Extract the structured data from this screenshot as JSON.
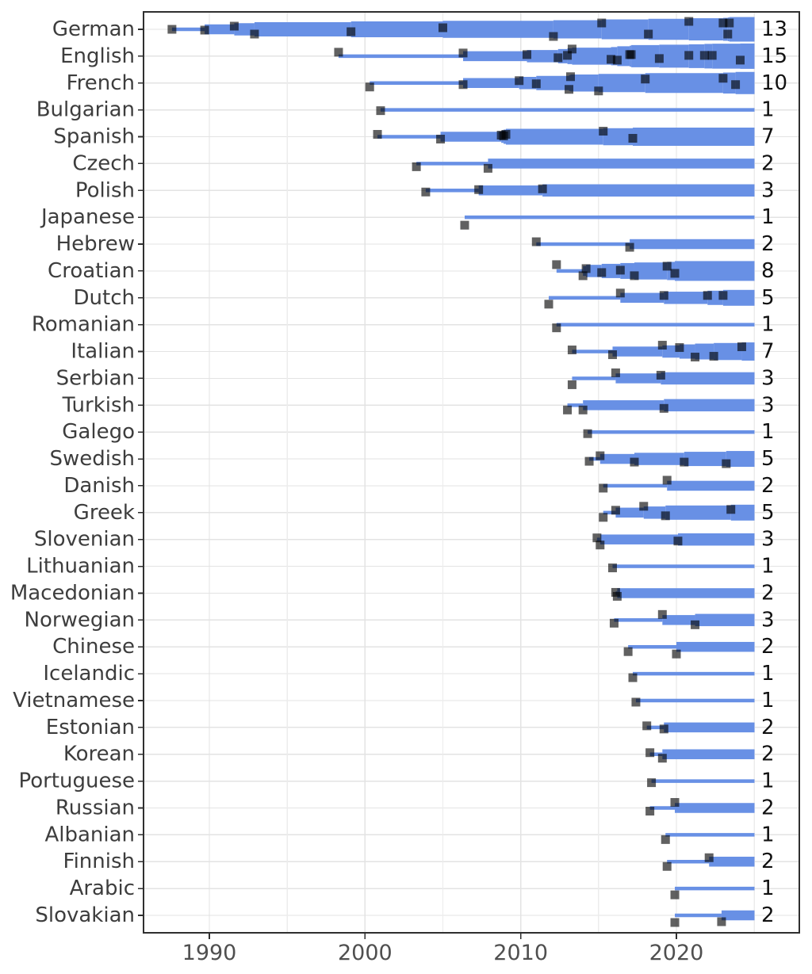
{
  "chart_data": {
    "type": "scatter",
    "subtype": "timeline-dotplot-with-cumulative-ribbons",
    "title": "",
    "xlabel": "",
    "ylabel": "",
    "x_axis": {
      "tick_labels": [
        "1990",
        "2000",
        "2010",
        "2020"
      ],
      "tick_years": [
        1990,
        2000,
        2010,
        2020
      ],
      "minor_grid_years": [
        1995,
        2005,
        2015,
        2025
      ],
      "range_years": [
        1985.8,
        2027.9
      ],
      "ribbon_end_year": 2025.0,
      "grid": true
    },
    "colors": {
      "ribbon": "#6890e5",
      "marker": "rgba(0,0,0,0.62)",
      "grid_line": "#e3e3e3",
      "minor_grid_line": "#ececec",
      "plot_border": "#2f2f2f",
      "axis_text": "#3d3d3d",
      "x_tick_text": "#4f4f4f",
      "count_text": "#111111"
    },
    "events_format": "[year, vertical_jitter_px]",
    "rows": [
      {
        "language": "German",
        "count": 13,
        "events": [
          [
            1987.6,
            0
          ],
          [
            1989.7,
            1
          ],
          [
            1991.6,
            -4
          ],
          [
            1992.9,
            6
          ],
          [
            1999.1,
            3
          ],
          [
            2005.0,
            -2
          ],
          [
            2012.1,
            9
          ],
          [
            2015.2,
            -8
          ],
          [
            2018.2,
            6
          ],
          [
            2020.8,
            -10
          ],
          [
            2023.0,
            -8
          ],
          [
            2023.3,
            6
          ],
          [
            2023.4,
            -8
          ]
        ]
      },
      {
        "language": "English",
        "count": 15,
        "events": [
          [
            1998.3,
            -5
          ],
          [
            2006.3,
            -4
          ],
          [
            2010.4,
            -2
          ],
          [
            2012.4,
            2
          ],
          [
            2013.0,
            -1
          ],
          [
            2013.3,
            -9
          ],
          [
            2015.8,
            4
          ],
          [
            2016.2,
            5
          ],
          [
            2017.0,
            -2
          ],
          [
            2017.1,
            -2
          ],
          [
            2018.9,
            3
          ],
          [
            2020.8,
            -1
          ],
          [
            2021.8,
            -1
          ],
          [
            2022.3,
            -1
          ],
          [
            2024.1,
            5
          ]
        ]
      },
      {
        "language": "French",
        "count": 10,
        "events": [
          [
            2000.3,
            5
          ],
          [
            2006.3,
            2
          ],
          [
            2009.9,
            -3
          ],
          [
            2011.0,
            1
          ],
          [
            2013.1,
            8
          ],
          [
            2013.2,
            -8
          ],
          [
            2015.0,
            10
          ],
          [
            2018.0,
            -5
          ],
          [
            2023.0,
            -6
          ],
          [
            2023.8,
            2
          ]
        ]
      },
      {
        "language": "Bulgarian",
        "count": 1,
        "events": [
          [
            2001.0,
            1
          ]
        ]
      },
      {
        "language": "Spanish",
        "count": 7,
        "events": [
          [
            2000.8,
            -3
          ],
          [
            2004.85,
            3
          ],
          [
            2008.75,
            -2
          ],
          [
            2008.9,
            -1
          ],
          [
            2009.05,
            -3
          ],
          [
            2015.3,
            -7
          ],
          [
            2017.2,
            2
          ]
        ]
      },
      {
        "language": "Czech",
        "count": 2,
        "events": [
          [
            2003.3,
            4
          ],
          [
            2007.9,
            6
          ]
        ]
      },
      {
        "language": "Polish",
        "count": 3,
        "events": [
          [
            2003.9,
            2
          ],
          [
            2007.3,
            -1
          ],
          [
            2011.4,
            -2
          ]
        ]
      },
      {
        "language": "Japanese",
        "count": 1,
        "events": [
          [
            2006.4,
            10
          ]
        ]
      },
      {
        "language": "Hebrew",
        "count": 2,
        "events": [
          [
            2011.0,
            -3
          ],
          [
            2017.0,
            4
          ]
        ]
      },
      {
        "language": "Croatian",
        "count": 8,
        "events": [
          [
            2012.3,
            -8
          ],
          [
            2014.0,
            6
          ],
          [
            2014.2,
            -3
          ],
          [
            2015.2,
            2
          ],
          [
            2016.4,
            -1
          ],
          [
            2017.3,
            6
          ],
          [
            2019.4,
            -6
          ],
          [
            2019.9,
            3
          ]
        ]
      },
      {
        "language": "Dutch",
        "count": 5,
        "events": [
          [
            2011.8,
            8
          ],
          [
            2016.4,
            -6
          ],
          [
            2019.2,
            -3
          ],
          [
            2022.0,
            -3
          ],
          [
            2023.0,
            -3
          ]
        ]
      },
      {
        "language": "Romanian",
        "count": 1,
        "events": [
          [
            2012.3,
            4
          ]
        ]
      },
      {
        "language": "Italian",
        "count": 7,
        "events": [
          [
            2013.3,
            -2
          ],
          [
            2015.9,
            4
          ],
          [
            2019.1,
            -8
          ],
          [
            2020.2,
            -5
          ],
          [
            2021.2,
            7
          ],
          [
            2022.4,
            6
          ],
          [
            2024.2,
            -6
          ]
        ]
      },
      {
        "language": "Serbian",
        "count": 3,
        "events": [
          [
            2013.3,
            8
          ],
          [
            2016.1,
            -7
          ],
          [
            2019.0,
            -4
          ]
        ]
      },
      {
        "language": "Turkish",
        "count": 3,
        "events": [
          [
            2013.0,
            6
          ],
          [
            2014.0,
            6
          ],
          [
            2019.2,
            4
          ]
        ]
      },
      {
        "language": "Galego",
        "count": 1,
        "events": [
          [
            2014.3,
            2
          ]
        ]
      },
      {
        "language": "Swedish",
        "count": 5,
        "events": [
          [
            2014.4,
            3
          ],
          [
            2015.1,
            -4
          ],
          [
            2017.3,
            4
          ],
          [
            2020.5,
            4
          ],
          [
            2023.2,
            6
          ]
        ]
      },
      {
        "language": "Danish",
        "count": 2,
        "events": [
          [
            2015.3,
            3
          ],
          [
            2019.4,
            -7
          ]
        ]
      },
      {
        "language": "Greek",
        "count": 5,
        "events": [
          [
            2015.3,
            6
          ],
          [
            2016.1,
            -3
          ],
          [
            2017.9,
            -8
          ],
          [
            2019.3,
            4
          ],
          [
            2023.5,
            -4
          ]
        ]
      },
      {
        "language": "Slovenian",
        "count": 3,
        "events": [
          [
            2014.9,
            -2
          ],
          [
            2015.1,
            7
          ],
          [
            2020.1,
            2
          ]
        ]
      },
      {
        "language": "Lithuanian",
        "count": 1,
        "events": [
          [
            2015.9,
            2
          ]
        ]
      },
      {
        "language": "Macedonian",
        "count": 2,
        "events": [
          [
            2016.1,
            -1
          ],
          [
            2016.2,
            4
          ]
        ]
      },
      {
        "language": "Norwegian",
        "count": 3,
        "events": [
          [
            2016.0,
            4
          ],
          [
            2019.1,
            -7
          ],
          [
            2021.2,
            6
          ]
        ]
      },
      {
        "language": "Chinese",
        "count": 2,
        "events": [
          [
            2016.9,
            6
          ],
          [
            2020.0,
            9
          ]
        ]
      },
      {
        "language": "Icelandic",
        "count": 1,
        "events": [
          [
            2017.2,
            5
          ]
        ]
      },
      {
        "language": "Vietnamese",
        "count": 1,
        "events": [
          [
            2017.4,
            2
          ]
        ]
      },
      {
        "language": "Estonian",
        "count": 2,
        "events": [
          [
            2018.1,
            -2
          ],
          [
            2019.2,
            2
          ]
        ]
      },
      {
        "language": "Korean",
        "count": 2,
        "events": [
          [
            2018.3,
            -2
          ],
          [
            2019.1,
            5
          ]
        ]
      },
      {
        "language": "Portuguese",
        "count": 1,
        "events": [
          [
            2018.4,
            2
          ]
        ]
      },
      {
        "language": "Russian",
        "count": 2,
        "events": [
          [
            2018.3,
            4
          ],
          [
            2019.9,
            -7
          ]
        ]
      },
      {
        "language": "Albanian",
        "count": 1,
        "events": [
          [
            2019.3,
            6
          ]
        ]
      },
      {
        "language": "Finnish",
        "count": 2,
        "events": [
          [
            2019.4,
            6
          ],
          [
            2022.1,
            -5
          ]
        ]
      },
      {
        "language": "Arabic",
        "count": 1,
        "events": [
          [
            2019.9,
            8
          ]
        ]
      },
      {
        "language": "Slovakian",
        "count": 2,
        "events": [
          [
            2019.9,
            9
          ],
          [
            2022.9,
            8
          ]
        ]
      }
    ]
  }
}
